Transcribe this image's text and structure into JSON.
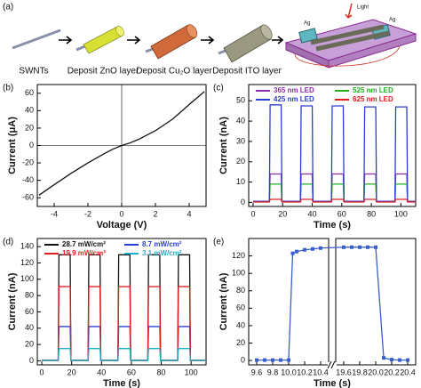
{
  "schematic": {
    "label": "(a)",
    "steps": [
      "SWNTs",
      "Deposit ZnO layer",
      "Deposit Cu₂O layer",
      "Deposit ITO layer"
    ],
    "device_labels": [
      "Ag",
      "Light",
      "Ag"
    ]
  },
  "chart_data": [
    {
      "type": "line",
      "panel_label": "(b)",
      "xlabel": "Voltage (V)",
      "ylabel": "Current (μA)",
      "xlim": [
        -5,
        5
      ],
      "ylim": [
        -70,
        70
      ],
      "xticks": [
        -4,
        -2,
        0,
        2,
        4
      ],
      "yticks": [
        -60,
        -40,
        -20,
        0,
        20,
        40,
        60
      ],
      "zero_lines": true,
      "x": [
        -4.9,
        -4,
        -3,
        -2,
        -1,
        -0.5,
        0,
        0.5,
        1,
        2,
        3,
        4,
        4.9
      ],
      "series": [
        {
          "color": "#111111",
          "values": [
            -57,
            -45,
            -32,
            -20,
            -9,
            -4,
            0,
            3,
            7,
            17,
            30,
            47,
            62
          ]
        }
      ]
    },
    {
      "type": "line",
      "panel_label": "(c)",
      "xlabel": "Time (s)",
      "ylabel": "Current (nA)",
      "xlim": [
        -3,
        110
      ],
      "ylim": [
        -2,
        58
      ],
      "xticks": [
        0,
        20,
        40,
        60,
        80,
        100
      ],
      "yticks": [
        0,
        10,
        20,
        30,
        40,
        50
      ],
      "legend": "top",
      "x": [
        0,
        11,
        11.5,
        19,
        19.5,
        32,
        32.5,
        40,
        40.5,
        53,
        53.5,
        61,
        61.5,
        75,
        75.5,
        83,
        83.5,
        96,
        96.5,
        104,
        104.5,
        110
      ],
      "series": [
        {
          "name": "365 nm LED",
          "color": "#8b2fa8",
          "values": [
            0.5,
            0.5,
            14,
            14,
            0.5,
            0.5,
            14,
            14,
            0.5,
            0.5,
            14,
            14,
            0.5,
            0.5,
            14,
            14,
            0.5,
            0.5,
            14,
            14,
            0.5,
            0.5
          ]
        },
        {
          "name": "525 nm LED",
          "color": "#22b022",
          "values": [
            0.3,
            0.3,
            9,
            9,
            0.3,
            0.3,
            9,
            9,
            0.3,
            0.3,
            9,
            9,
            0.3,
            0.3,
            9,
            9,
            0.3,
            0.3,
            9,
            9,
            0.3,
            0.3
          ]
        },
        {
          "name": "425 nm LED",
          "color": "#2a3fd0",
          "values": [
            0.5,
            0.5,
            48,
            48,
            0.5,
            0.5,
            47.5,
            47.5,
            0.5,
            0.5,
            47.5,
            47.5,
            0.5,
            0.5,
            47,
            47,
            0.5,
            0.5,
            47,
            47,
            0.5,
            0.5
          ]
        },
        {
          "name": "625 nm LED",
          "color": "#e02020",
          "values": [
            0.2,
            0.2,
            1.5,
            1.5,
            0.2,
            0.2,
            1.5,
            1.5,
            0.2,
            0.2,
            1.5,
            1.5,
            0.2,
            0.2,
            1.5,
            1.5,
            0.2,
            0.2,
            1.5,
            1.5,
            0.2,
            0.2
          ]
        }
      ]
    },
    {
      "type": "line",
      "panel_label": "(d)",
      "xlabel": "Time (s)",
      "ylabel": "Current (nA)",
      "xlim": [
        -3,
        110
      ],
      "ylim": [
        -5,
        150
      ],
      "xticks": [
        0,
        20,
        40,
        60,
        80,
        100
      ],
      "yticks": [
        0,
        20,
        40,
        60,
        80,
        100,
        120,
        140
      ],
      "legend": "top",
      "x": [
        0,
        11,
        11.5,
        19,
        19.5,
        31,
        31.5,
        39,
        39.5,
        51,
        51.5,
        59,
        59.5,
        71,
        71.5,
        79,
        79.5,
        91,
        91.5,
        99,
        99.5,
        110
      ],
      "series": [
        {
          "name": "28.7 mW/cm²",
          "color": "#111111",
          "values": [
            0.5,
            0.5,
            130,
            130,
            0.5,
            0.5,
            130,
            130,
            0.5,
            0.5,
            130,
            130,
            0.5,
            0.5,
            130,
            130,
            0.5,
            0.5,
            130,
            130,
            0.5,
            0.5
          ]
        },
        {
          "name": "8.7 mW/cm²",
          "color": "#2a3fd0",
          "values": [
            0.5,
            0.5,
            42,
            42,
            0.5,
            0.5,
            42,
            42,
            0.5,
            0.5,
            42,
            42,
            0.5,
            0.5,
            42,
            42,
            0.5,
            0.5,
            42,
            42,
            0.5,
            0.5
          ]
        },
        {
          "name": "19.9 mW/cm²",
          "color": "#e02020",
          "values": [
            0.5,
            0.5,
            91,
            91,
            0.5,
            0.5,
            91,
            91,
            0.5,
            0.5,
            91,
            91,
            0.5,
            0.5,
            91,
            91,
            0.5,
            0.5,
            91,
            91,
            0.5,
            0.5
          ]
        },
        {
          "name": "3.1 mW/cm²",
          "color": "#1fb0c8",
          "values": [
            0.5,
            0.5,
            15,
            15,
            0.5,
            0.5,
            15,
            15,
            0.5,
            0.5,
            15,
            15,
            0.5,
            0.5,
            15,
            15,
            0.5,
            0.5,
            15,
            15,
            0.5,
            0.5
          ]
        }
      ]
    },
    {
      "type": "line",
      "panel_label": "(e)",
      "xlabel": "Time (s)",
      "ylabel": "Current (nA)",
      "ylim": [
        -5,
        140
      ],
      "yticks": [
        0,
        20,
        40,
        60,
        80,
        100,
        120
      ],
      "marker": "square",
      "x_segments": [
        {
          "xlim": [
            9.5,
            10.5
          ],
          "xticks": [
            9.6,
            9.8,
            {
              "value": 10,
              "label": "10.0"
            },
            10.2,
            10.4
          ]
        },
        {
          "xlim": [
            19.5,
            20.5
          ],
          "xticks": [
            19.6,
            19.8,
            {
              "value": 20,
              "label": "20.0"
            },
            20.2,
            20.4
          ]
        }
      ],
      "x": [
        9.6,
        9.7,
        9.8,
        9.9,
        10.0,
        10.05,
        10.1,
        10.2,
        10.3,
        10.4,
        19.6,
        19.7,
        19.8,
        19.9,
        20.0,
        20.1,
        20.2,
        20.3,
        20.4
      ],
      "series": [
        {
          "color": "#3a5fcd",
          "values": [
            0.5,
            0.5,
            0.5,
            0.5,
            0.5,
            123,
            125,
            127,
            128,
            129,
            130,
            130,
            130,
            130,
            130,
            3,
            1,
            0.5,
            0.5
          ]
        }
      ]
    }
  ]
}
